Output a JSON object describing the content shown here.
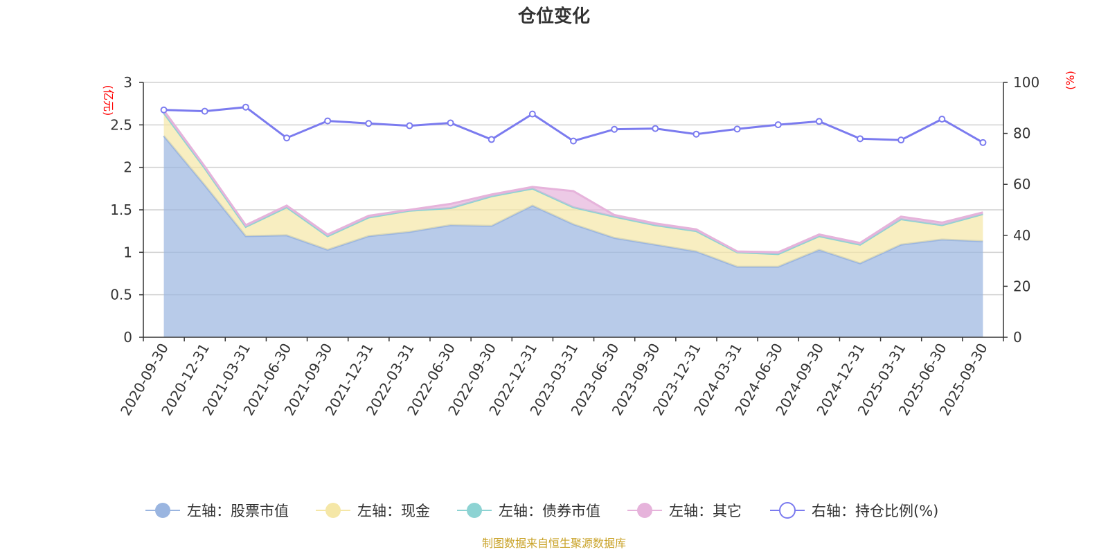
{
  "chart_data": {
    "type": "area",
    "title": "仓位变化",
    "left_unit": "(亿元)",
    "right_unit": "(%)",
    "categories": [
      "2020-09-30",
      "2020-12-31",
      "2021-03-31",
      "2021-06-30",
      "2021-09-30",
      "2021-12-31",
      "2022-03-31",
      "2022-06-30",
      "2022-09-30",
      "2022-12-31",
      "2023-03-31",
      "2023-06-30",
      "2023-09-30",
      "2023-12-31",
      "2024-03-31",
      "2024-06-30",
      "2024-09-30",
      "2024-12-31",
      "2025-03-31",
      "2025-06-30",
      "2025-09-30"
    ],
    "left_axis": {
      "min": 0,
      "max": 3,
      "ticks": [
        "0",
        "0.5",
        "1",
        "1.5",
        "2",
        "2.5",
        "3"
      ],
      "tick_values": [
        0,
        0.5,
        1,
        1.5,
        2,
        2.5,
        3
      ]
    },
    "right_axis": {
      "min": 0,
      "max": 100,
      "ticks": [
        "0",
        "20",
        "40",
        "60",
        "80",
        "100"
      ],
      "tick_values": [
        0,
        20,
        40,
        60,
        80,
        100
      ]
    },
    "series": [
      {
        "name": "左轴：股票市值",
        "axis": "left",
        "color": "#9ab5e0",
        "values": [
          2.37,
          1.79,
          1.19,
          1.2,
          1.03,
          1.19,
          1.24,
          1.32,
          1.31,
          1.55,
          1.33,
          1.17,
          1.09,
          1.01,
          0.83,
          0.83,
          1.03,
          0.87,
          1.09,
          1.15,
          1.13
        ]
      },
      {
        "name": "左轴：现金",
        "axis": "left",
        "color": "#f5e7a7",
        "values": [
          0.27,
          0.2,
          0.11,
          0.33,
          0.16,
          0.22,
          0.25,
          0.2,
          0.35,
          0.2,
          0.2,
          0.25,
          0.23,
          0.24,
          0.17,
          0.15,
          0.16,
          0.22,
          0.3,
          0.17,
          0.32
        ]
      },
      {
        "name": "左轴：债券市值",
        "axis": "left",
        "color": "#8dd3d3",
        "values": [
          0,
          0,
          0,
          0,
          0,
          0,
          0,
          0,
          0,
          0,
          0,
          0,
          0,
          0,
          0,
          0,
          0,
          0,
          0,
          0,
          0
        ]
      },
      {
        "name": "左轴：其它",
        "axis": "left",
        "color": "#e6b3db",
        "values": [
          0.03,
          0.02,
          0.02,
          0.02,
          0.02,
          0.02,
          0.01,
          0.05,
          0.02,
          0.02,
          0.19,
          0.02,
          0.02,
          0.02,
          0.01,
          0.02,
          0.02,
          0.02,
          0.03,
          0.03,
          0.02
        ]
      },
      {
        "name": "右轴：持仓比例(%)",
        "axis": "right",
        "color": "#7b7bef",
        "values": [
          89.2,
          88.7,
          90.3,
          78.2,
          84.9,
          83.9,
          83.0,
          84.1,
          77.6,
          87.6,
          77.0,
          81.6,
          81.9,
          79.7,
          81.7,
          83.4,
          84.7,
          77.9,
          77.4,
          85.6,
          76.4
        ]
      }
    ]
  },
  "legend": [
    {
      "label": "左轴：股票市值",
      "color": "#9ab5e0",
      "style": "filled"
    },
    {
      "label": "左轴：现金",
      "color": "#f5e7a7",
      "style": "filled"
    },
    {
      "label": "左轴：债券市值",
      "color": "#8dd3d3",
      "style": "filled"
    },
    {
      "label": "左轴：其它",
      "color": "#e6b3db",
      "style": "filled"
    },
    {
      "label": "右轴：持仓比例(%)",
      "color": "#7b7bef",
      "style": "hollow"
    }
  ],
  "source": "制图数据来自恒生聚源数据库"
}
